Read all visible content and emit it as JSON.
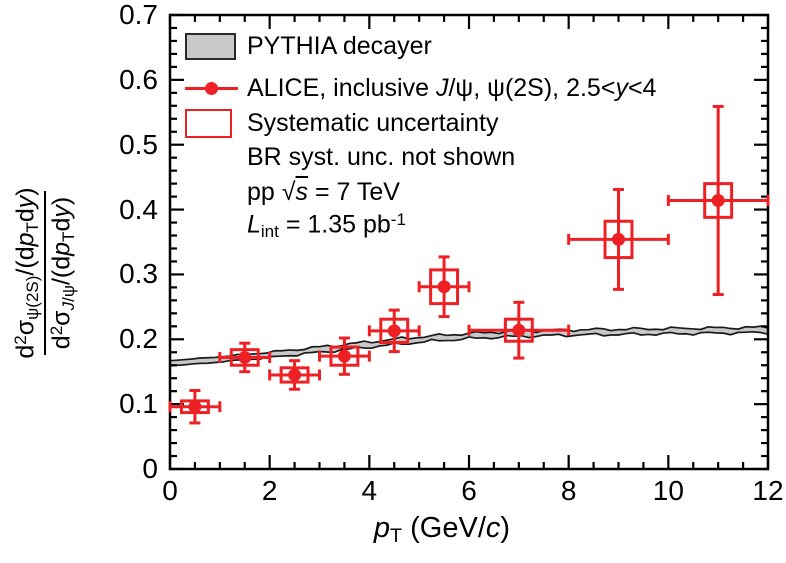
{
  "figure": {
    "title": "psi(2S) to J/psi cross section ratio vs pT"
  },
  "colors": {
    "data_red": "#ed2024",
    "band_fill": "#c9c9c9",
    "band_edge": "#1a1a1a",
    "frame": "#000000",
    "text": "#000000"
  },
  "chart_data": {
    "type": "scatter",
    "title": "",
    "xlabel_segments": [
      {
        "s": "i",
        "t": "p"
      },
      {
        "s": "sub",
        "t": "T"
      },
      {
        "t": " (GeV/"
      },
      {
        "s": "i",
        "t": "c"
      },
      {
        "t": ")"
      }
    ],
    "ylabel_num_segments": [
      {
        "t": "d"
      },
      {
        "s": "sup",
        "t": "2"
      },
      {
        "t": "σ"
      },
      {
        "s": "sub",
        "t": "ψ(2S)"
      },
      {
        "t": "/(d"
      },
      {
        "s": "i",
        "t": "p"
      },
      {
        "s": "sub",
        "t": "T"
      },
      {
        "t": "d"
      },
      {
        "s": "i",
        "t": "y"
      },
      {
        "t": ")"
      }
    ],
    "ylabel_den_segments": [
      {
        "t": "d"
      },
      {
        "s": "sup",
        "t": "2"
      },
      {
        "t": "σ"
      },
      {
        "s": "sub-i",
        "t": "J"
      },
      {
        "s": "sub",
        "t": "/ψ"
      },
      {
        "t": "/(d"
      },
      {
        "s": "i",
        "t": "p"
      },
      {
        "s": "sub",
        "t": "T"
      },
      {
        "t": "d"
      },
      {
        "s": "i",
        "t": "y"
      },
      {
        "t": ")"
      }
    ],
    "xlim": [
      0,
      12
    ],
    "ylim": [
      0,
      0.7
    ],
    "grid": false,
    "legend_position": "top-left",
    "x_ticks": {
      "values": [
        0,
        2,
        4,
        6,
        8,
        10,
        12
      ],
      "labels": [
        "0",
        "2",
        "4",
        "6",
        "8",
        "10",
        "12"
      ],
      "minor_step": 0.5
    },
    "y_ticks": {
      "values": [
        0,
        0.1,
        0.2,
        0.3,
        0.4,
        0.5,
        0.6,
        0.7
      ],
      "labels": [
        "0",
        "0.1",
        "0.2",
        "0.3",
        "0.4",
        "0.5",
        "0.6",
        "0.7"
      ],
      "minor_step": 0.02
    },
    "series": [
      {
        "name": "PYTHIA decayer",
        "type": "band",
        "halfwidth": 0.004,
        "points": [
          [
            0,
            0.163
          ],
          [
            0.5,
            0.166
          ],
          [
            1,
            0.169
          ],
          [
            1.5,
            0.1725
          ],
          [
            2,
            0.176
          ],
          [
            2.5,
            0.18
          ],
          [
            3,
            0.184
          ],
          [
            3.5,
            0.188
          ],
          [
            4,
            0.192
          ],
          [
            4.5,
            0.196
          ],
          [
            5,
            0.1995
          ],
          [
            5.5,
            0.2025
          ],
          [
            6,
            0.205
          ],
          [
            6.5,
            0.207
          ],
          [
            7,
            0.2085
          ],
          [
            7.5,
            0.2095
          ],
          [
            8,
            0.2105
          ],
          [
            8.5,
            0.211
          ],
          [
            9,
            0.2115
          ],
          [
            9.5,
            0.212
          ],
          [
            10,
            0.2125
          ],
          [
            10.5,
            0.213
          ],
          [
            11,
            0.2135
          ],
          [
            11.5,
            0.214
          ],
          [
            12,
            0.2145
          ]
        ]
      },
      {
        "name": "ALICE, inclusive J/ψ, ψ(2S), 2.5<y<4",
        "type": "points",
        "sys_box_halfwidth": 0.27,
        "points": [
          {
            "x": 0.5,
            "y": 0.096,
            "xerr": 0.5,
            "yerr": 0.025,
            "sys": 0.009
          },
          {
            "x": 1.5,
            "y": 0.172,
            "xerr": 0.5,
            "yerr": 0.022,
            "sys": 0.012
          },
          {
            "x": 2.5,
            "y": 0.145,
            "xerr": 0.5,
            "yerr": 0.022,
            "sys": 0.011
          },
          {
            "x": 3.5,
            "y": 0.174,
            "xerr": 0.5,
            "yerr": 0.028,
            "sys": 0.014
          },
          {
            "x": 4.5,
            "y": 0.213,
            "xerr": 0.5,
            "yerr": 0.032,
            "sys": 0.018
          },
          {
            "x": 5.5,
            "y": 0.281,
            "xerr": 0.5,
            "yerr": 0.046,
            "sys": 0.026
          },
          {
            "x": 7.0,
            "y": 0.214,
            "xerr": 1.0,
            "yerr": 0.043,
            "sys": 0.017
          },
          {
            "x": 9.0,
            "y": 0.354,
            "xerr": 1.0,
            "yerr": 0.077,
            "sys": 0.028
          },
          {
            "x": 11.0,
            "y": 0.414,
            "xerr": 1.0,
            "yerr": 0.145,
            "sys": 0.026
          }
        ]
      }
    ],
    "legend": {
      "rows": [
        {
          "key": "pythia",
          "swatch": "band",
          "segments": [
            {
              "t": "PYTHIA decayer"
            }
          ]
        },
        {
          "key": "alice",
          "swatch": "marker",
          "segments": [
            {
              "t": "ALICE, inclusive "
            },
            {
              "s": "i",
              "t": "J"
            },
            {
              "t": "/ψ, ψ(2S), 2.5<"
            },
            {
              "s": "i",
              "t": "y"
            },
            {
              "t": "<4"
            }
          ]
        },
        {
          "key": "syst",
          "swatch": "sysbox",
          "segments": [
            {
              "t": "Systematic uncertainty"
            }
          ]
        },
        {
          "key": "br-note",
          "swatch": "none",
          "segments": [
            {
              "t": "BR syst. unc. not shown"
            }
          ]
        },
        {
          "key": "energy",
          "swatch": "none",
          "segments": [
            {
              "t": "pp  "
            },
            {
              "t": "√"
            },
            {
              "s": "i-ov",
              "t": "s"
            },
            {
              "t": " = 7 TeV"
            }
          ]
        },
        {
          "key": "lumi",
          "swatch": "none",
          "segments": [
            {
              "s": "i",
              "t": "L"
            },
            {
              "s": "sub",
              "t": "int"
            },
            {
              "t": " = 1.35 pb"
            },
            {
              "s": "sup",
              "t": "-1"
            }
          ]
        }
      ]
    }
  }
}
